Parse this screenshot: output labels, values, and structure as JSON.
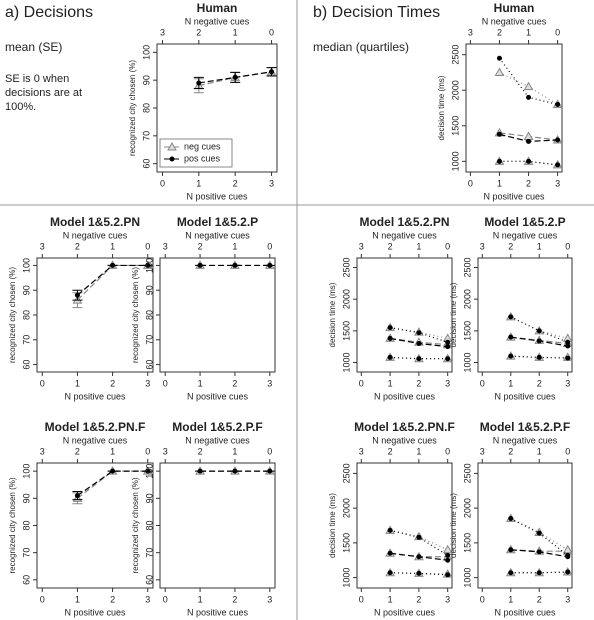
{
  "sections": [
    {
      "title": "a) Decisions",
      "subtitle": "mean (SE)",
      "note": "SE is 0 when decisions are at 100%."
    },
    {
      "title": "b) Decision Times",
      "subtitle": "median (quartiles)"
    }
  ],
  "chart_data": [
    {
      "type": "line",
      "title": "Human",
      "xlabel": "N positive cues",
      "x2label": "N negative cues",
      "ylabel": "recognized city chosen (%)",
      "x": [
        1,
        2,
        3
      ],
      "xlim": [
        -0.15,
        3.15
      ],
      "xticks": [
        0,
        1,
        2,
        3
      ],
      "x2lim": [
        3.15,
        -0.15
      ],
      "x2ticks": [
        3,
        2,
        1,
        0
      ],
      "ylim": [
        57,
        103
      ],
      "yticks": [
        60,
        70,
        80,
        90,
        100
      ],
      "legend": "bottom-left",
      "series": [
        {
          "name": "neg cues",
          "color": "#888888",
          "marker": "triangle",
          "values": [
            88,
            91,
            93
          ],
          "errors": [
            2.5,
            1.8,
            1.5
          ]
        },
        {
          "name": "pos cues",
          "color": "#000000",
          "marker": "circle",
          "values": [
            89,
            91,
            93
          ],
          "errors": [
            2,
            1.8,
            1.5
          ]
        }
      ]
    },
    {
      "type": "line",
      "title": "Model 1&5.2.PN",
      "xlabel": "N positive cues",
      "x2label": "N negative cues",
      "ylabel": "recognized city chosen (%)",
      "x": [
        1,
        2,
        3
      ],
      "xlim": [
        -0.15,
        3.15
      ],
      "xticks": [
        0,
        1,
        2,
        3
      ],
      "x2lim": [
        3.15,
        -0.15
      ],
      "x2ticks": [
        3,
        2,
        1,
        0
      ],
      "ylim": [
        57,
        103
      ],
      "yticks": [
        60,
        70,
        80,
        90,
        100
      ],
      "series": [
        {
          "color": "#888888",
          "marker": "triangle",
          "values": [
            86,
            100,
            100
          ],
          "errors": [
            3,
            0,
            0
          ]
        },
        {
          "color": "#000000",
          "marker": "circle",
          "values": [
            88,
            100,
            100
          ],
          "errors": [
            2,
            0,
            0
          ]
        }
      ]
    },
    {
      "type": "line",
      "title": "Model 1&5.2.P",
      "xlabel": "N positive cues",
      "x2label": "N negative cues",
      "ylabel": "recognized city chosen (%)",
      "x": [
        1,
        2,
        3
      ],
      "xlim": [
        -0.15,
        3.15
      ],
      "xticks": [
        0,
        1,
        2,
        3
      ],
      "x2lim": [
        3.15,
        -0.15
      ],
      "x2ticks": [
        3,
        2,
        1,
        0
      ],
      "ylim": [
        57,
        103
      ],
      "yticks": [
        60,
        70,
        80,
        90,
        100
      ],
      "series": [
        {
          "color": "#888888",
          "marker": "triangle",
          "values": [
            100,
            100,
            100
          ],
          "errors": [
            0,
            0,
            0
          ]
        },
        {
          "color": "#000000",
          "marker": "circle",
          "values": [
            100,
            100,
            100
          ],
          "errors": [
            0,
            0,
            0
          ]
        }
      ]
    },
    {
      "type": "line",
      "title": "Model 1&5.2.PN.F",
      "xlabel": "N positive cues",
      "x2label": "N negative cues",
      "ylabel": "recognized city chosen (%)",
      "x": [
        1,
        2,
        3
      ],
      "xlim": [
        -0.15,
        3.15
      ],
      "xticks": [
        0,
        1,
        2,
        3
      ],
      "x2lim": [
        3.15,
        -0.15
      ],
      "x2ticks": [
        3,
        2,
        1,
        0
      ],
      "ylim": [
        57,
        103
      ],
      "yticks": [
        60,
        70,
        80,
        90,
        100
      ],
      "series": [
        {
          "color": "#888888",
          "marker": "triangle",
          "values": [
            90,
            100,
            100
          ],
          "errors": [
            2,
            0,
            0
          ]
        },
        {
          "color": "#000000",
          "marker": "circle",
          "values": [
            91,
            100,
            100
          ],
          "errors": [
            1.5,
            0,
            0
          ]
        }
      ]
    },
    {
      "type": "line",
      "title": "Model 1&5.2.P.F",
      "xlabel": "N positive cues",
      "x2label": "N negative cues",
      "ylabel": "recognized city chosen (%)",
      "x": [
        1,
        2,
        3
      ],
      "xlim": [
        -0.15,
        3.15
      ],
      "xticks": [
        0,
        1,
        2,
        3
      ],
      "x2lim": [
        3.15,
        -0.15
      ],
      "x2ticks": [
        3,
        2,
        1,
        0
      ],
      "ylim": [
        57,
        103
      ],
      "yticks": [
        60,
        70,
        80,
        90,
        100
      ],
      "series": [
        {
          "color": "#888888",
          "marker": "triangle",
          "values": [
            100,
            100,
            100
          ],
          "errors": [
            0,
            0,
            0
          ]
        },
        {
          "color": "#000000",
          "marker": "circle",
          "values": [
            100,
            100,
            100
          ],
          "errors": [
            0,
            0,
            0
          ]
        }
      ]
    },
    {
      "type": "line",
      "title": "Human",
      "xlabel": "N positive cues",
      "x2label": "N negative cues",
      "ylabel": "decision time (ms)",
      "x": [
        1,
        2,
        3
      ],
      "xlim": [
        -0.15,
        3.15
      ],
      "xticks": [
        0,
        1,
        2,
        3
      ],
      "x2lim": [
        3.15,
        -0.15
      ],
      "x2ticks": [
        3,
        2,
        1,
        0
      ],
      "ylim": [
        850,
        2650
      ],
      "yticks": [
        1000,
        1500,
        2000,
        2500
      ],
      "series": [
        {
          "color": "#888888",
          "marker": "triangle",
          "values": [
            1400,
            1350,
            1300
          ],
          "q1": [
            1000,
            1000,
            950
          ],
          "q3": [
            2250,
            2050,
            1800
          ]
        },
        {
          "color": "#000000",
          "marker": "circle",
          "values": [
            1380,
            1280,
            1300
          ],
          "q1": [
            1000,
            1000,
            950
          ],
          "q3": [
            2450,
            1900,
            1800
          ]
        }
      ]
    },
    {
      "type": "line",
      "title": "Model 1&5.2.PN",
      "xlabel": "N positive cues",
      "x2label": "N negative cues",
      "ylabel": "decision time (ms)",
      "x": [
        1,
        2,
        3
      ],
      "xlim": [
        -0.15,
        3.15
      ],
      "xticks": [
        0,
        1,
        2,
        3
      ],
      "x2lim": [
        3.15,
        -0.15
      ],
      "x2ticks": [
        3,
        2,
        1,
        0
      ],
      "ylim": [
        850,
        2650
      ],
      "yticks": [
        1000,
        1500,
        2000,
        2500
      ],
      "series": [
        {
          "color": "#888888",
          "marker": "triangle",
          "values": [
            1380,
            1320,
            1280
          ],
          "q1": [
            1080,
            1060,
            1060
          ],
          "q3": [
            1550,
            1480,
            1380
          ]
        },
        {
          "color": "#000000",
          "marker": "circle",
          "values": [
            1380,
            1300,
            1250
          ],
          "q1": [
            1080,
            1060,
            1060
          ],
          "q3": [
            1550,
            1470,
            1320
          ]
        }
      ]
    },
    {
      "type": "line",
      "title": "Model 1&5.2.P",
      "xlabel": "N positive cues",
      "x2label": "N negative cues",
      "ylabel": "decision time (ms)",
      "x": [
        1,
        2,
        3
      ],
      "xlim": [
        -0.15,
        3.15
      ],
      "xticks": [
        0,
        1,
        2,
        3
      ],
      "x2lim": [
        3.15,
        -0.15
      ],
      "x2ticks": [
        3,
        2,
        1,
        0
      ],
      "ylim": [
        850,
        2650
      ],
      "yticks": [
        1000,
        1500,
        2000,
        2500
      ],
      "series": [
        {
          "color": "#888888",
          "marker": "triangle",
          "values": [
            1400,
            1350,
            1300
          ],
          "q1": [
            1100,
            1080,
            1080
          ],
          "q3": [
            1720,
            1500,
            1380
          ]
        },
        {
          "color": "#000000",
          "marker": "circle",
          "values": [
            1400,
            1340,
            1260
          ],
          "q1": [
            1100,
            1080,
            1070
          ],
          "q3": [
            1720,
            1500,
            1320
          ]
        }
      ]
    },
    {
      "type": "line",
      "title": "Model 1&5.2.PN.F",
      "xlabel": "N positive cues",
      "x2label": "N negative cues",
      "ylabel": "decision time (ms)",
      "x": [
        1,
        2,
        3
      ],
      "xlim": [
        -0.15,
        3.15
      ],
      "xticks": [
        0,
        1,
        2,
        3
      ],
      "x2lim": [
        3.15,
        -0.15
      ],
      "x2ticks": [
        3,
        2,
        1,
        0
      ],
      "ylim": [
        850,
        2650
      ],
      "yticks": [
        1000,
        1500,
        2000,
        2500
      ],
      "series": [
        {
          "color": "#888888",
          "marker": "triangle",
          "values": [
            1350,
            1300,
            1300
          ],
          "q1": [
            1070,
            1060,
            1050
          ],
          "q3": [
            1680,
            1590,
            1400
          ]
        },
        {
          "color": "#000000",
          "marker": "circle",
          "values": [
            1350,
            1300,
            1250
          ],
          "q1": [
            1070,
            1060,
            1040
          ],
          "q3": [
            1680,
            1580,
            1320
          ]
        }
      ]
    },
    {
      "type": "line",
      "title": "Model 1&5.2.P.F",
      "xlabel": "N positive cues",
      "x2label": "N negative cues",
      "ylabel": "decision time (ms)",
      "x": [
        1,
        2,
        3
      ],
      "xlim": [
        -0.15,
        3.15
      ],
      "xticks": [
        0,
        1,
        2,
        3
      ],
      "x2lim": [
        3.15,
        -0.15
      ],
      "x2ticks": [
        3,
        2,
        1,
        0
      ],
      "ylim": [
        850,
        2650
      ],
      "yticks": [
        1000,
        1500,
        2000,
        2500
      ],
      "series": [
        {
          "color": "#888888",
          "marker": "triangle",
          "values": [
            1400,
            1380,
            1380
          ],
          "q1": [
            1070,
            1070,
            1080
          ],
          "q3": [
            1850,
            1650,
            1400
          ]
        },
        {
          "color": "#000000",
          "marker": "circle",
          "values": [
            1400,
            1370,
            1300
          ],
          "q1": [
            1070,
            1070,
            1080
          ],
          "q3": [
            1850,
            1640,
            1320
          ]
        }
      ]
    }
  ]
}
